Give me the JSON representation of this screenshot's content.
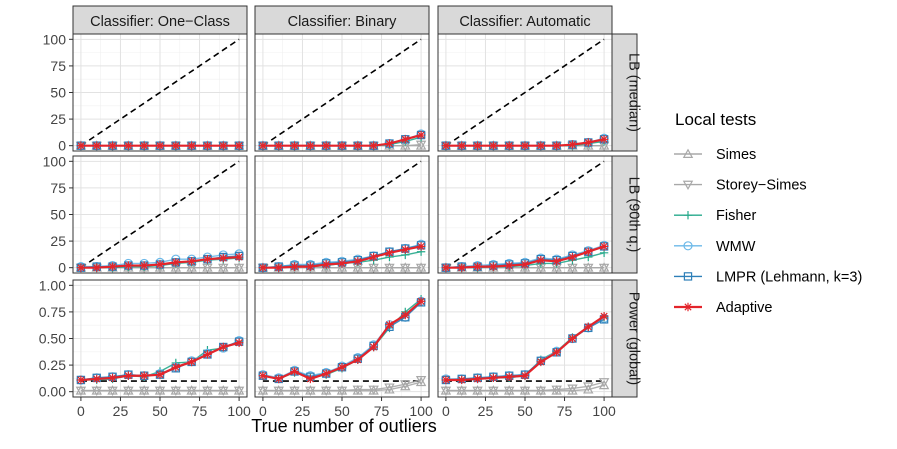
{
  "chart_data": {
    "type": "line",
    "xlabel": "True number of outliers",
    "x": [
      0,
      10,
      20,
      30,
      40,
      50,
      60,
      70,
      80,
      90,
      100
    ],
    "x_ticks": [
      0,
      25,
      50,
      75,
      100
    ],
    "columns": [
      "Classifier: One−Class",
      "Classifier: Binary",
      "Classifier: Automatic"
    ],
    "rows": [
      {
        "label": "LB (median)",
        "ylim": [
          0,
          100
        ],
        "ticks": [
          "0",
          "25",
          "50",
          "75",
          "100"
        ],
        "tick_values": [
          0,
          25,
          50,
          75,
          100
        ]
      },
      {
        "label": "LB (90th q.)",
        "ylim": [
          0,
          100
        ],
        "ticks": [
          "0",
          "25",
          "50",
          "75",
          "100"
        ],
        "tick_values": [
          0,
          25,
          50,
          75,
          100
        ]
      },
      {
        "label": "Power (global)",
        "ylim": [
          0,
          1
        ],
        "ticks": [
          "0.00",
          "0.25",
          "0.50",
          "0.75",
          "1.00"
        ],
        "tick_values": [
          0,
          0.25,
          0.5,
          0.75,
          1.0
        ]
      }
    ],
    "reference_lines": {
      "lb": {
        "style": "dashed",
        "description": "y = x",
        "x": [
          0,
          100
        ],
        "y": [
          0,
          100
        ]
      },
      "power": {
        "style": "dashed",
        "y": 0.1
      }
    },
    "legend": {
      "title": "Local tests",
      "items": [
        {
          "name": "Simes",
          "color": "#a8a8a8",
          "marker": "triangle-up"
        },
        {
          "name": "Storey−Simes",
          "color": "#a8a8a8",
          "marker": "triangle-down"
        },
        {
          "name": "Fisher",
          "color": "#26a98b",
          "marker": "plus"
        },
        {
          "name": "WMW",
          "color": "#6bb8e8",
          "marker": "circle"
        },
        {
          "name": "LMPR (Lehmann, k=3)",
          "color": "#2d7fb8",
          "marker": "square"
        },
        {
          "name": "Adaptive",
          "color": "#e3242b",
          "marker": "asterisk"
        }
      ]
    },
    "panels": [
      {
        "row": 0,
        "col": 0,
        "series": {
          "Simes": [
            0,
            0,
            0,
            0,
            0,
            0,
            0,
            0,
            0,
            0,
            0
          ],
          "Storey−Simes": [
            0,
            0,
            0,
            0,
            0,
            0,
            0,
            0,
            0,
            0,
            0
          ],
          "Fisher": [
            0,
            0,
            0,
            0,
            0,
            0,
            0,
            0,
            0,
            0,
            0
          ],
          "WMW": [
            0,
            0,
            0,
            0,
            0,
            0,
            0,
            0,
            0,
            0,
            0
          ],
          "LMPR (Lehmann, k=3)": [
            0,
            0,
            0,
            0,
            0,
            0,
            0,
            0,
            0,
            0,
            0
          ],
          "Adaptive": [
            0,
            0,
            0,
            0,
            0,
            0,
            0,
            0,
            0,
            0,
            0
          ]
        }
      },
      {
        "row": 0,
        "col": 1,
        "series": {
          "Simes": [
            0,
            0,
            0,
            0,
            0,
            0,
            0,
            0,
            0,
            0,
            0
          ],
          "Storey−Simes": [
            0,
            0,
            0,
            0,
            0,
            0,
            0,
            0,
            0,
            0,
            1
          ],
          "Fisher": [
            0,
            0,
            0,
            0,
            0,
            0,
            0,
            0,
            1,
            4,
            8
          ],
          "WMW": [
            0,
            0,
            0,
            0,
            0,
            0,
            0,
            0,
            2,
            6,
            11
          ],
          "LMPR (Lehmann, k=3)": [
            0,
            0,
            0,
            0,
            0,
            0,
            0,
            0,
            2,
            6,
            10
          ],
          "Adaptive": [
            0,
            0,
            0,
            0,
            0,
            0,
            0,
            0,
            2,
            6,
            10
          ]
        }
      },
      {
        "row": 0,
        "col": 2,
        "series": {
          "Simes": [
            0,
            0,
            0,
            0,
            0,
            0,
            0,
            0,
            0,
            0,
            0
          ],
          "Storey−Simes": [
            0,
            0,
            0,
            0,
            0,
            0,
            0,
            0,
            0,
            0,
            0
          ],
          "Fisher": [
            0,
            0,
            0,
            0,
            0,
            0,
            0,
            0,
            0,
            2,
            4
          ],
          "WMW": [
            0,
            0,
            0,
            0,
            0,
            0,
            0,
            0,
            1,
            3,
            7
          ],
          "LMPR (Lehmann, k=3)": [
            0,
            0,
            0,
            0,
            0,
            0,
            0,
            0,
            1,
            3,
            6
          ],
          "Adaptive": [
            0,
            0,
            0,
            0,
            0,
            0,
            0,
            0,
            1,
            3,
            6
          ]
        }
      },
      {
        "row": 1,
        "col": 0,
        "series": {
          "Simes": [
            0,
            0,
            0,
            0,
            0,
            0,
            0,
            0,
            0,
            0,
            0
          ],
          "Storey−Simes": [
            0,
            0,
            0,
            0,
            0,
            0,
            0,
            0,
            0,
            0,
            0
          ],
          "Fisher": [
            0,
            0,
            0,
            1,
            1,
            2,
            4,
            5,
            7,
            8,
            9
          ],
          "WMW": [
            1,
            1,
            2,
            4,
            4,
            5,
            8,
            8,
            10,
            12,
            13
          ],
          "LMPR (Lehmann, k=3)": [
            0,
            1,
            1,
            2,
            2,
            3,
            5,
            6,
            8,
            10,
            11
          ],
          "Adaptive": [
            0,
            0,
            1,
            2,
            2,
            3,
            5,
            6,
            8,
            9,
            10
          ]
        }
      },
      {
        "row": 1,
        "col": 1,
        "series": {
          "Simes": [
            0,
            0,
            0,
            0,
            0,
            0,
            0,
            0,
            0,
            0,
            0
          ],
          "Storey−Simes": [
            0,
            0,
            0,
            0,
            0,
            0,
            0,
            0,
            0,
            0,
            0
          ],
          "Fisher": [
            0,
            0,
            1,
            1,
            2,
            4,
            5,
            7,
            10,
            12,
            15
          ],
          "WMW": [
            0,
            1,
            3,
            3,
            5,
            6,
            8,
            11,
            15,
            18,
            22
          ],
          "LMPR (Lehmann, k=3)": [
            0,
            1,
            2,
            2,
            4,
            5,
            7,
            11,
            15,
            18,
            21
          ],
          "Adaptive": [
            0,
            0,
            1,
            1,
            3,
            4,
            6,
            10,
            14,
            17,
            20
          ]
        }
      },
      {
        "row": 1,
        "col": 2,
        "series": {
          "Simes": [
            0,
            0,
            0,
            0,
            0,
            0,
            0,
            0,
            0,
            0,
            0
          ],
          "Storey−Simes": [
            0,
            0,
            0,
            0,
            0,
            0,
            0,
            0,
            0,
            0,
            0
          ],
          "Fisher": [
            0,
            0,
            0,
            1,
            1,
            2,
            4,
            4,
            7,
            10,
            14
          ],
          "WMW": [
            0,
            1,
            2,
            3,
            4,
            5,
            9,
            8,
            12,
            16,
            21
          ],
          "LMPR (Lehmann, k=3)": [
            0,
            1,
            1,
            2,
            3,
            4,
            8,
            7,
            11,
            15,
            20
          ],
          "Adaptive": [
            0,
            0,
            1,
            1,
            2,
            3,
            7,
            6,
            10,
            15,
            20
          ]
        }
      },
      {
        "row": 2,
        "col": 0,
        "series": {
          "Simes": [
            0.01,
            0.01,
            0.01,
            0.01,
            0.01,
            0.01,
            0.01,
            0.01,
            0.01,
            0.01,
            0.01
          ],
          "Storey−Simes": [
            0.01,
            0.01,
            0.01,
            0.01,
            0.01,
            0.01,
            0.01,
            0.01,
            0.01,
            0.01,
            0.01
          ],
          "Fisher": [
            0.11,
            0.11,
            0.12,
            0.15,
            0.14,
            0.19,
            0.27,
            0.28,
            0.39,
            0.41,
            0.47
          ],
          "WMW": [
            0.11,
            0.13,
            0.14,
            0.16,
            0.15,
            0.17,
            0.23,
            0.29,
            0.36,
            0.41,
            0.48
          ],
          "LMPR (Lehmann, k=3)": [
            0.11,
            0.13,
            0.14,
            0.16,
            0.15,
            0.16,
            0.22,
            0.28,
            0.35,
            0.42,
            0.47
          ],
          "Adaptive": [
            0.11,
            0.12,
            0.13,
            0.15,
            0.15,
            0.16,
            0.23,
            0.28,
            0.35,
            0.42,
            0.46
          ]
        }
      },
      {
        "row": 2,
        "col": 1,
        "series": {
          "Simes": [
            0.01,
            0.01,
            0.01,
            0.01,
            0.01,
            0.01,
            0.01,
            0.01,
            0.02,
            0.05,
            0.09
          ],
          "Storey−Simes": [
            0.01,
            0.01,
            0.01,
            0.01,
            0.01,
            0.01,
            0.02,
            0.02,
            0.04,
            0.07,
            0.11
          ],
          "Fisher": [
            0.15,
            0.12,
            0.18,
            0.13,
            0.16,
            0.22,
            0.3,
            0.42,
            0.6,
            0.75,
            0.87
          ],
          "WMW": [
            0.16,
            0.13,
            0.2,
            0.15,
            0.18,
            0.24,
            0.32,
            0.44,
            0.63,
            0.7,
            0.85
          ],
          "LMPR (Lehmann, k=3)": [
            0.15,
            0.12,
            0.19,
            0.14,
            0.17,
            0.23,
            0.31,
            0.43,
            0.61,
            0.7,
            0.84
          ],
          "Adaptive": [
            0.15,
            0.12,
            0.19,
            0.12,
            0.17,
            0.23,
            0.3,
            0.42,
            0.63,
            0.72,
            0.85
          ]
        }
      },
      {
        "row": 2,
        "col": 2,
        "series": {
          "Simes": [
            0.01,
            0.01,
            0.01,
            0.01,
            0.01,
            0.01,
            0.01,
            0.01,
            0.01,
            0.02,
            0.06
          ],
          "Storey−Simes": [
            0.01,
            0.01,
            0.01,
            0.01,
            0.01,
            0.01,
            0.01,
            0.02,
            0.03,
            0.05,
            0.09
          ],
          "Fisher": [
            0.11,
            0.12,
            0.12,
            0.13,
            0.13,
            0.15,
            0.3,
            0.38,
            0.51,
            0.61,
            0.7
          ],
          "WMW": [
            0.12,
            0.12,
            0.13,
            0.14,
            0.15,
            0.16,
            0.29,
            0.38,
            0.5,
            0.6,
            0.69
          ],
          "LMPR (Lehmann, k=3)": [
            0.11,
            0.12,
            0.13,
            0.14,
            0.15,
            0.16,
            0.29,
            0.37,
            0.5,
            0.6,
            0.68
          ],
          "Adaptive": [
            0.11,
            0.11,
            0.12,
            0.13,
            0.14,
            0.15,
            0.28,
            0.37,
            0.5,
            0.61,
            0.71
          ]
        }
      }
    ]
  }
}
